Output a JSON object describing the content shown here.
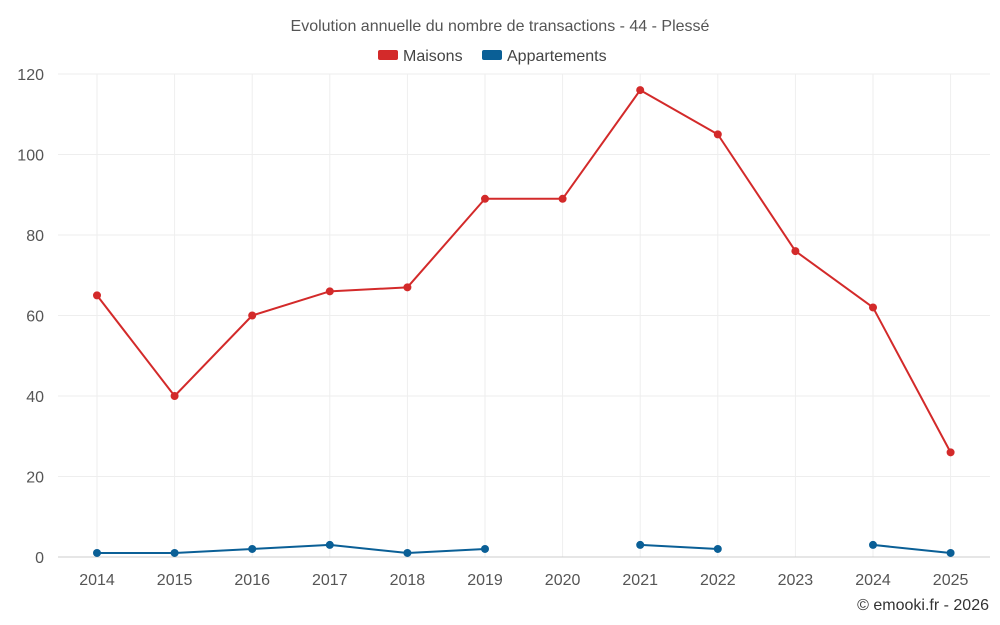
{
  "chart_data": {
    "type": "line",
    "title": "Evolution annuelle du nombre de transactions - 44 - Plessé",
    "categories": [
      "2014",
      "2015",
      "2016",
      "2017",
      "2018",
      "2019",
      "2020",
      "2021",
      "2022",
      "2023",
      "2024",
      "2025"
    ],
    "ylim": [
      0,
      120
    ],
    "yticks": [
      0,
      20,
      40,
      60,
      80,
      100,
      120
    ],
    "grid": true,
    "legend_position": "top-center",
    "series": [
      {
        "name": "Maisons",
        "color": "#d32a2a",
        "values": [
          65,
          40,
          60,
          66,
          67,
          89,
          89,
          116,
          105,
          76,
          62,
          26
        ]
      },
      {
        "name": "Appartements",
        "color": "#0a5f96",
        "values": [
          1,
          1,
          2,
          3,
          1,
          2,
          null,
          3,
          2,
          null,
          3,
          1
        ]
      }
    ],
    "credit": "© emooki.fr - 2026"
  }
}
